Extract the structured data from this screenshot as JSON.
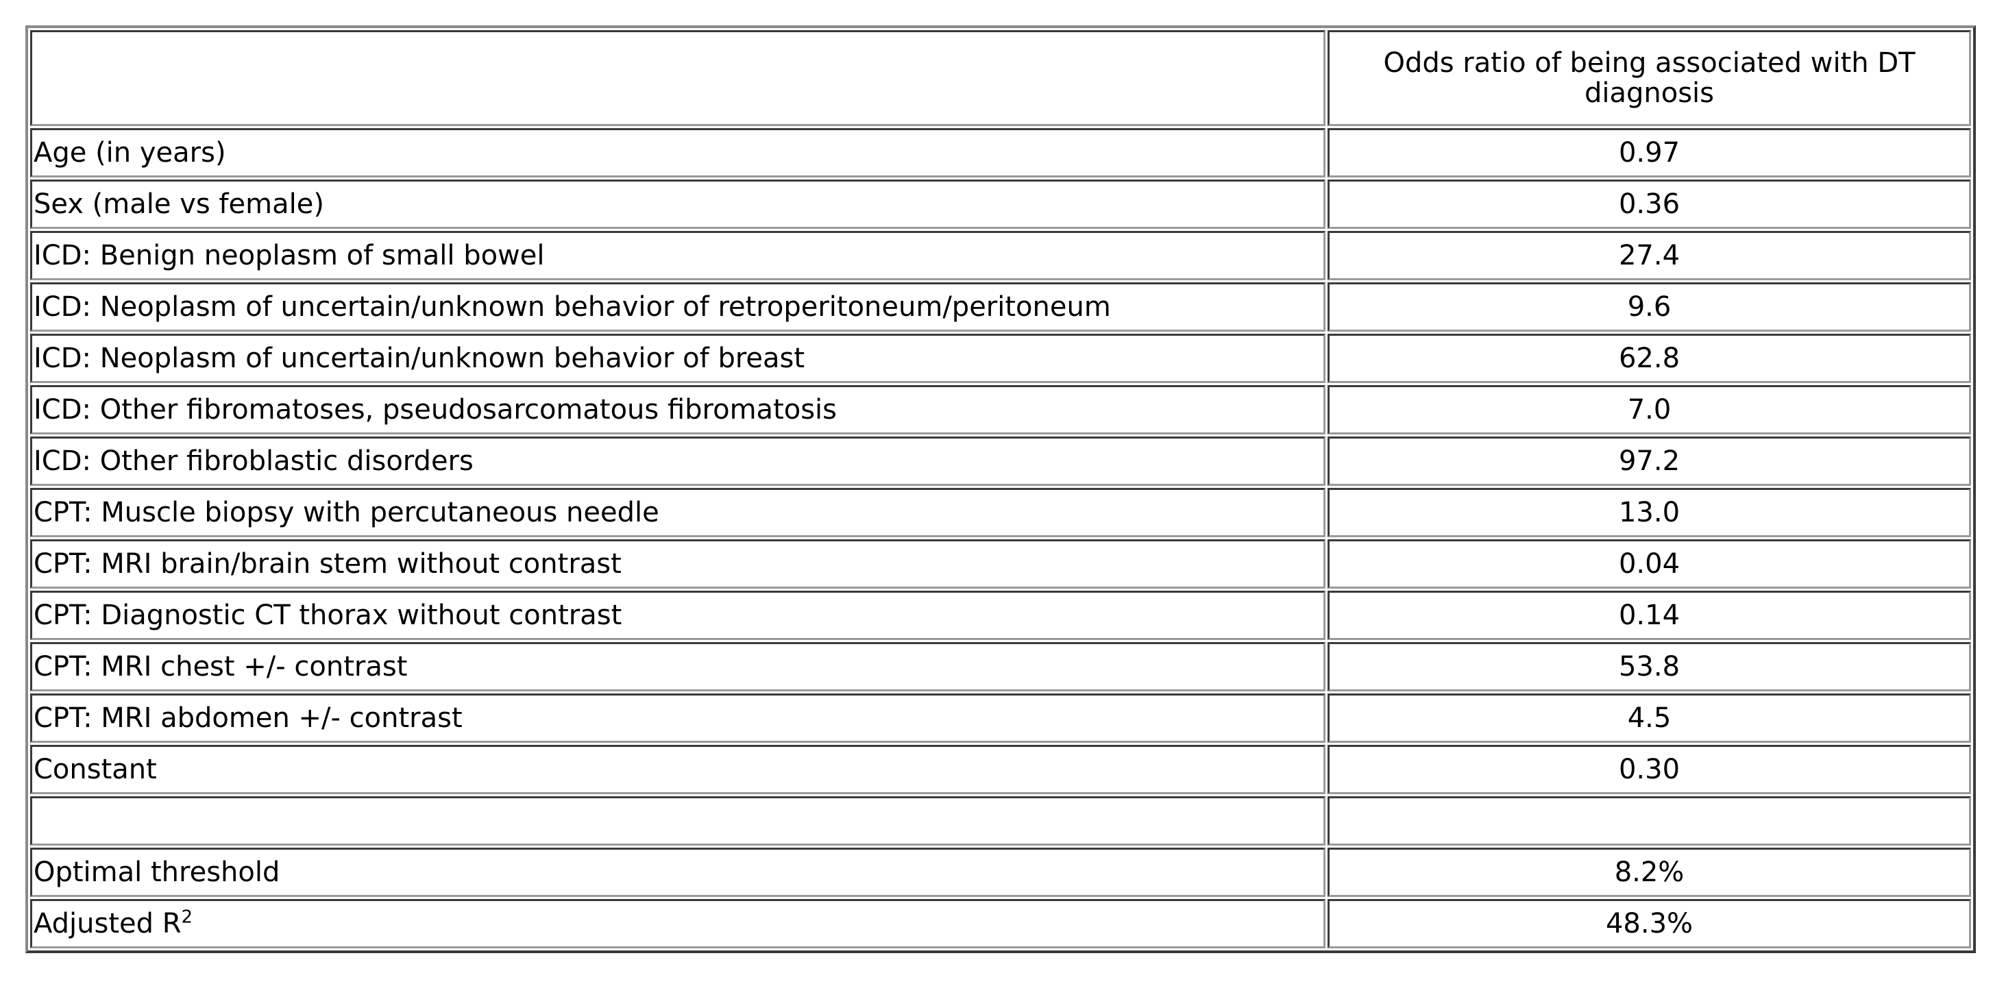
{
  "table": {
    "header": {
      "label": "",
      "value": "Odds ratio of being associated with DT diagnosis"
    },
    "rows": [
      {
        "label": "Age (in years)",
        "value": "0.97"
      },
      {
        "label": "Sex (male vs female)",
        "value": "0.36"
      },
      {
        "label": "ICD: Benign neoplasm of small bowel",
        "value": "27.4"
      },
      {
        "label": "ICD: Neoplasm of uncertain/unknown behavior of retroperitoneum/peritoneum",
        "value": "9.6"
      },
      {
        "label": "ICD: Neoplasm of uncertain/unknown behavior of breast",
        "value": "62.8"
      },
      {
        "label": "ICD: Other fibromatoses, pseudosarcomatous fibromatosis",
        "value": "7.0"
      },
      {
        "label": "ICD: Other fibroblastic disorders",
        "value": "97.2"
      },
      {
        "label": "CPT: Muscle biopsy with percutaneous needle",
        "value": "13.0"
      },
      {
        "label": "CPT: MRI brain/brain stem without contrast",
        "value": "0.04"
      },
      {
        "label": "CPT: Diagnostic CT thorax without contrast",
        "value": "0.14"
      },
      {
        "label": "CPT: MRI chest +/- contrast",
        "value": "53.8"
      },
      {
        "label": "CPT: MRI abdomen +/- contrast",
        "value": "4.5"
      },
      {
        "label": "Constant",
        "value": "0.30"
      },
      {
        "label": "",
        "value": ""
      },
      {
        "label": "Optimal threshold",
        "value": "8.2%"
      }
    ],
    "last_row": {
      "label": "Adjusted R",
      "label_sup": "2",
      "value": "48.3%"
    }
  }
}
